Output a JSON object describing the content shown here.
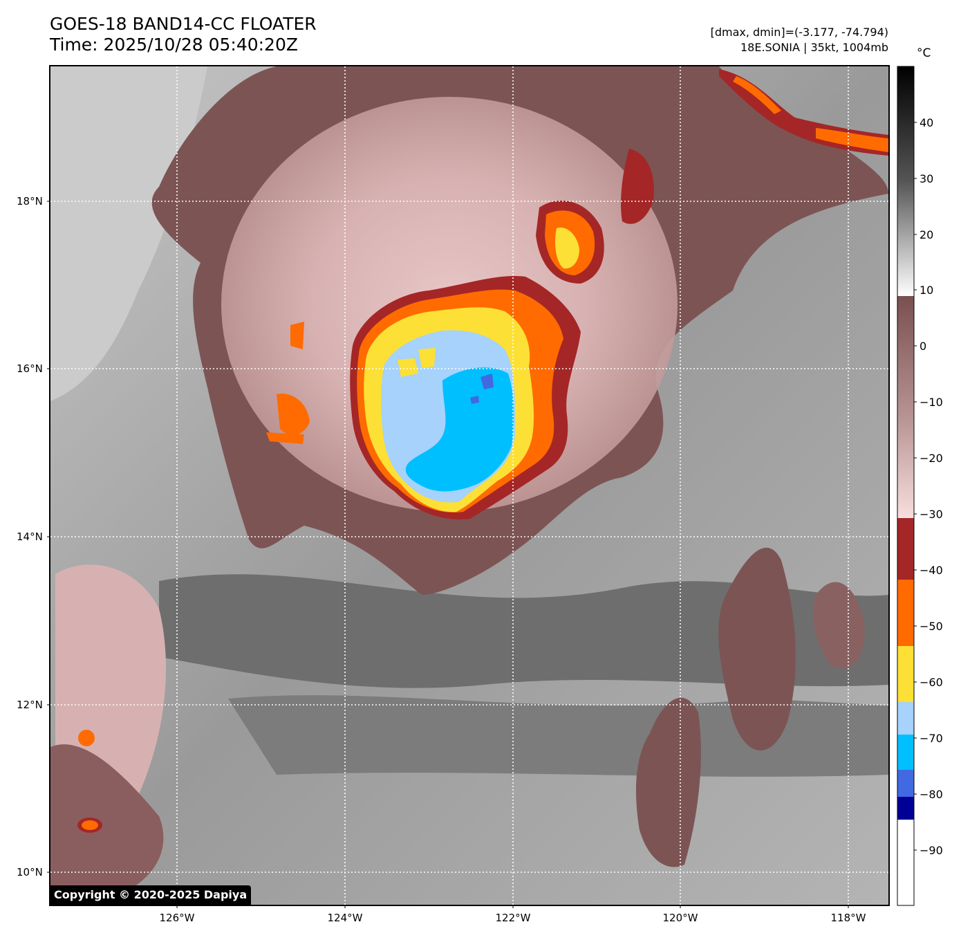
{
  "header": {
    "title": "GOES-18 BAND14-CC FLOATER",
    "time": "Time: 2025/10/28 05:40:20Z",
    "range": "[dmax, dmin]=(-3.177, -74.794)",
    "storm": "18E.SONIA | 35kt, 1004mb"
  },
  "map": {
    "lat_labels": [
      "18°N",
      "16°N",
      "14°N",
      "12°N",
      "10°N"
    ],
    "lon_labels": [
      "126°W",
      "124°W",
      "122°W",
      "120°W",
      "118°W"
    ],
    "grid": "dotted white",
    "copyright": "Copyright © 2020-2025 Dapiya"
  },
  "colorbar": {
    "unit": "°C",
    "tick_labels": [
      "40",
      "30",
      "20",
      "10",
      "0",
      "−10",
      "−20",
      "−30",
      "−40",
      "−50",
      "−60",
      "−70",
      "−80",
      "−90"
    ],
    "segments": [
      {
        "from": 50,
        "to": 9,
        "style": "black-to-white gradient"
      },
      {
        "from": 9,
        "to": -31,
        "style": "brown-to-pink gradient"
      },
      {
        "from": -31,
        "to": -42,
        "color": "#a52626"
      },
      {
        "from": -42,
        "to": -54,
        "color": "#ff6b00"
      },
      {
        "from": -54,
        "to": -64,
        "color": "#fce035"
      },
      {
        "from": -64,
        "to": -70,
        "color": "#a6d2fb"
      },
      {
        "from": -70,
        "to": -76,
        "color": "#00bfff"
      },
      {
        "from": -76,
        "to": -80,
        "color": "#4169e1"
      },
      {
        "from": -80,
        "to": -84,
        "color": "#000096"
      },
      {
        "from": -84,
        "to": -100,
        "color": "#ffffff"
      }
    ]
  },
  "colors": {
    "cold_core": "#00bfff",
    "inner": "#a6d2fb",
    "yellow": "#fce035",
    "orange": "#ff6b00",
    "red": "#a52626",
    "brown_cloud": "#7d5454",
    "gray_bg": "#8a8a8a"
  }
}
